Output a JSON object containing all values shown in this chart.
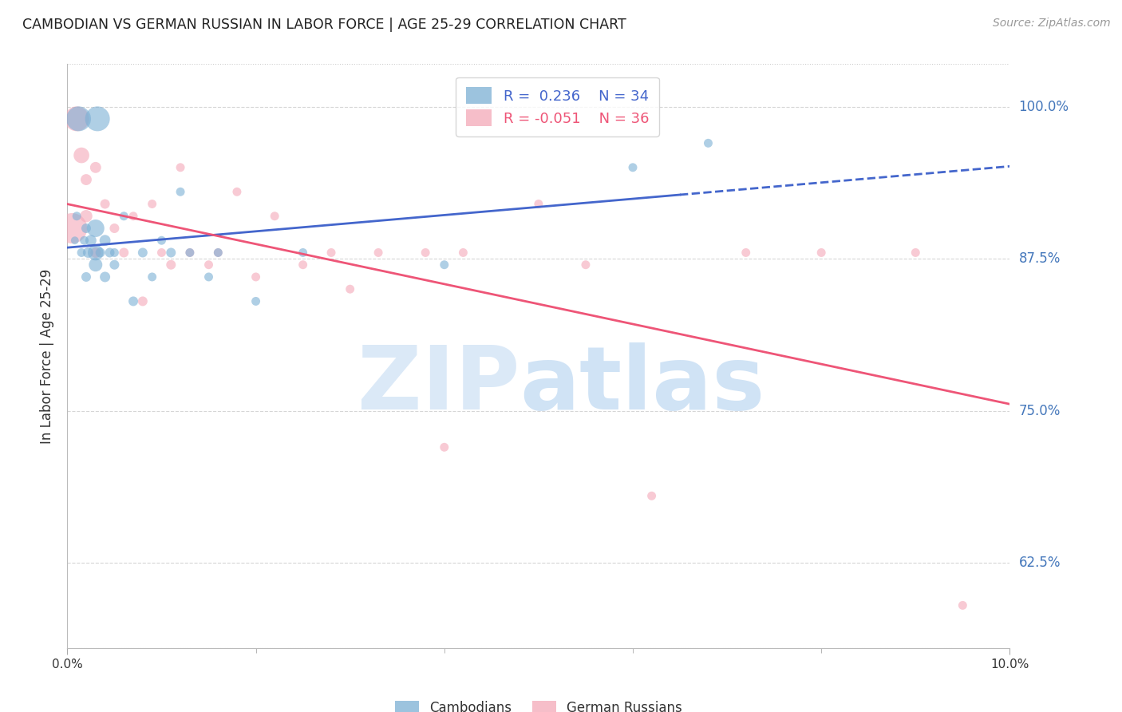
{
  "title": "CAMBODIAN VS GERMAN RUSSIAN IN LABOR FORCE | AGE 25-29 CORRELATION CHART",
  "source": "Source: ZipAtlas.com",
  "ylabel": "In Labor Force | Age 25-29",
  "xlim": [
    0.0,
    0.1
  ],
  "ylim": [
    0.555,
    1.035
  ],
  "ytick_labels": [
    "100.0%",
    "87.5%",
    "75.0%",
    "62.5%"
  ],
  "ytick_values": [
    1.0,
    0.875,
    0.75,
    0.625
  ],
  "cambodian_color": "#7BAFD4",
  "german_color": "#F4A8B8",
  "trendline_cambodian_color": "#4466CC",
  "trendline_german_color": "#EE5577",
  "cambodian_x": [
    0.0008,
    0.001,
    0.0012,
    0.0015,
    0.0018,
    0.002,
    0.002,
    0.0022,
    0.0025,
    0.003,
    0.003,
    0.003,
    0.0032,
    0.0035,
    0.004,
    0.004,
    0.0045,
    0.005,
    0.005,
    0.006,
    0.007,
    0.008,
    0.009,
    0.01,
    0.011,
    0.012,
    0.013,
    0.015,
    0.016,
    0.02,
    0.025,
    0.04,
    0.06,
    0.068
  ],
  "cambodian_y": [
    0.89,
    0.91,
    0.99,
    0.88,
    0.89,
    0.9,
    0.86,
    0.88,
    0.89,
    0.87,
    0.88,
    0.9,
    0.99,
    0.88,
    0.86,
    0.89,
    0.88,
    0.87,
    0.88,
    0.91,
    0.84,
    0.88,
    0.86,
    0.89,
    0.88,
    0.93,
    0.88,
    0.86,
    0.88,
    0.84,
    0.88,
    0.87,
    0.95,
    0.97
  ],
  "cambodian_size": [
    20,
    25,
    200,
    25,
    25,
    30,
    30,
    35,
    40,
    60,
    80,
    100,
    200,
    30,
    35,
    40,
    30,
    30,
    25,
    25,
    30,
    30,
    25,
    25,
    30,
    25,
    25,
    25,
    25,
    25,
    25,
    25,
    25,
    25
  ],
  "german_x": [
    0.0005,
    0.001,
    0.0015,
    0.002,
    0.002,
    0.003,
    0.003,
    0.004,
    0.005,
    0.006,
    0.007,
    0.008,
    0.009,
    0.01,
    0.011,
    0.012,
    0.013,
    0.015,
    0.016,
    0.018,
    0.02,
    0.022,
    0.025,
    0.028,
    0.03,
    0.033,
    0.038,
    0.04,
    0.042,
    0.05,
    0.055,
    0.062,
    0.072,
    0.08,
    0.09,
    0.095
  ],
  "german_y": [
    0.9,
    0.99,
    0.96,
    0.91,
    0.94,
    0.95,
    0.88,
    0.92,
    0.9,
    0.88,
    0.91,
    0.84,
    0.92,
    0.88,
    0.87,
    0.95,
    0.88,
    0.87,
    0.88,
    0.93,
    0.86,
    0.91,
    0.87,
    0.88,
    0.85,
    0.88,
    0.88,
    0.72,
    0.88,
    0.92,
    0.87,
    0.68,
    0.88,
    0.88,
    0.88,
    0.59
  ],
  "german_size": [
    300,
    200,
    80,
    50,
    40,
    40,
    35,
    30,
    30,
    30,
    25,
    30,
    25,
    25,
    30,
    25,
    25,
    25,
    25,
    25,
    25,
    25,
    25,
    25,
    25,
    25,
    25,
    25,
    25,
    25,
    25,
    25,
    25,
    25,
    25,
    25
  ],
  "background_color": "#ffffff",
  "grid_color": "#cccccc",
  "watermark_zip_color": "#cce0f5",
  "watermark_atlas_color": "#aaccee"
}
